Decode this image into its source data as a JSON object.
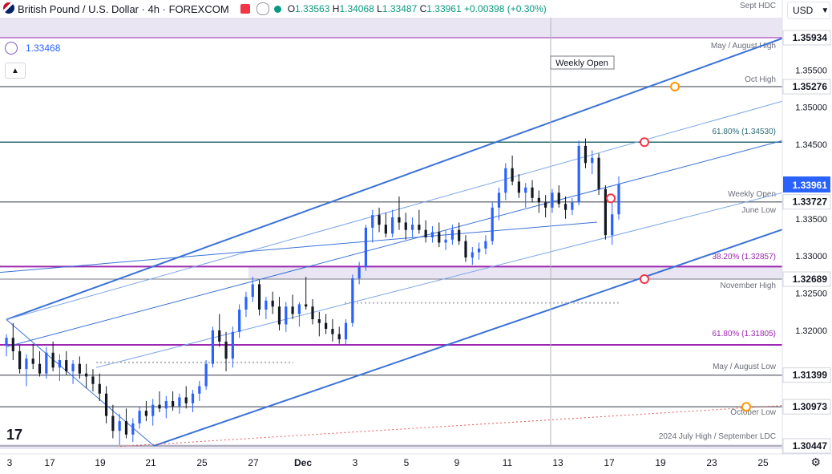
{
  "header": {
    "symbol": "British Pound / U.S. Dollar · 4h · FOREXCOM",
    "open_label": "O",
    "open": "1.33563",
    "high_label": "H",
    "high": "1.34068",
    "low_label": "L",
    "low": "1.33487",
    "close_label": "C",
    "close": "1.33961",
    "change": "+0.00398 (+0.30%)"
  },
  "indicator": {
    "value": "1.33468"
  },
  "currency_selector": {
    "label": "USD"
  },
  "colors": {
    "up": "#2962ff",
    "down": "#131722",
    "channel": "#3a72d6",
    "channel_light": "#7da6e8",
    "magenta": "#9c27b0",
    "gray_line": "#787b86",
    "teal_line": "#2b6c72",
    "marker_red": "#f23645",
    "marker_orange": "#ff9800",
    "band": "#e9e5f2"
  },
  "chart_data": {
    "type": "candlestick",
    "title": "British Pound / U.S. Dollar · 4h · FOREXCOM",
    "y_axis_ticks": [
      "1.35500",
      "1.35000",
      "1.34500",
      "1.33500",
      "1.33000",
      "1.32500",
      "1.32000"
    ],
    "ylim": [
      1.3033,
      1.3615
    ],
    "x_axis_ticks": [
      "3",
      "17",
      "19",
      "21",
      "25",
      "27",
      "Dec",
      "3",
      "5",
      "9",
      "11",
      "13",
      "17",
      "19",
      "23",
      "25"
    ],
    "levels": [
      {
        "label": "Sept HDC",
        "price": 1.3615,
        "price_label": ""
      },
      {
        "label": "May / August High",
        "price": 1.35934,
        "price_label": "1.35934"
      },
      {
        "label": "Oct High",
        "price": 1.35276,
        "price_label": "1.35276"
      },
      {
        "label": "61.80% (1.34530)",
        "price": 1.3453,
        "price_label": ""
      },
      {
        "label": "Weekly Open",
        "price": 1.33727,
        "price_label": "1.33727"
      },
      {
        "label": "June Low",
        "price": 1.33727,
        "price_label": ""
      },
      {
        "label": "38.20% (1.32857)",
        "price": 1.32857,
        "price_label": ""
      },
      {
        "label": "November High",
        "price": 1.32689,
        "price_label": "1.32689"
      },
      {
        "label": "61.80% (1.31805)",
        "price": 1.31805,
        "price_label": ""
      },
      {
        "label": "May / August Low",
        "price": 1.31399,
        "price_label": "1.31399"
      },
      {
        "label": "October Low",
        "price": 1.30973,
        "price_label": "1.30973"
      },
      {
        "label": "2024 July High / September LDC",
        "price": 1.30447,
        "price_label": "1.30447"
      }
    ],
    "last_price": "1.33961",
    "weekly_open_label": "Weekly Open",
    "candles_ohlc": [
      [
        1.318,
        1.3195,
        1.3165,
        1.319
      ],
      [
        1.319,
        1.321,
        1.316,
        1.3172
      ],
      [
        1.3172,
        1.318,
        1.3142,
        1.3148
      ],
      [
        1.3148,
        1.3168,
        1.3125,
        1.3162
      ],
      [
        1.3162,
        1.3182,
        1.3148,
        1.3155
      ],
      [
        1.3155,
        1.3172,
        1.3138,
        1.3142
      ],
      [
        1.3142,
        1.3178,
        1.3135,
        1.317
      ],
      [
        1.317,
        1.3185,
        1.3145,
        1.315
      ],
      [
        1.315,
        1.3168,
        1.3132,
        1.316
      ],
      [
        1.316,
        1.3172,
        1.314,
        1.3145
      ],
      [
        1.3145,
        1.316,
        1.3128,
        1.3155
      ],
      [
        1.3155,
        1.3165,
        1.3135,
        1.3142
      ],
      [
        1.3142,
        1.3155,
        1.3122,
        1.3138
      ],
      [
        1.3138,
        1.3148,
        1.3118,
        1.3128
      ],
      [
        1.3128,
        1.3142,
        1.3105,
        1.3115
      ],
      [
        1.3115,
        1.3125,
        1.3075,
        1.3085
      ],
      [
        1.3085,
        1.31,
        1.3055,
        1.3065
      ],
      [
        1.3065,
        1.3088,
        1.3046,
        1.3078
      ],
      [
        1.3078,
        1.3095,
        1.3055,
        1.306
      ],
      [
        1.306,
        1.3082,
        1.305,
        1.3075
      ],
      [
        1.3075,
        1.3098,
        1.3068,
        1.3092
      ],
      [
        1.3092,
        1.3105,
        1.3078,
        1.3085
      ],
      [
        1.3085,
        1.3108,
        1.3072,
        1.31
      ],
      [
        1.31,
        1.3118,
        1.309,
        1.3095
      ],
      [
        1.3095,
        1.3112,
        1.3082,
        1.3105
      ],
      [
        1.3105,
        1.3118,
        1.3092,
        1.3098
      ],
      [
        1.3098,
        1.3115,
        1.3088,
        1.311
      ],
      [
        1.311,
        1.3125,
        1.3095,
        1.3102
      ],
      [
        1.3102,
        1.312,
        1.309,
        1.3115
      ],
      [
        1.3115,
        1.3132,
        1.3105,
        1.3125
      ],
      [
        1.3125,
        1.316,
        1.312,
        1.3155
      ],
      [
        1.3155,
        1.3205,
        1.315,
        1.32
      ],
      [
        1.32,
        1.3222,
        1.3178,
        1.3185
      ],
      [
        1.3185,
        1.3198,
        1.3145,
        1.3162
      ],
      [
        1.3162,
        1.3205,
        1.315,
        1.3198
      ],
      [
        1.3198,
        1.3235,
        1.319,
        1.3228
      ],
      [
        1.3228,
        1.3252,
        1.3218,
        1.3245
      ],
      [
        1.3245,
        1.3272,
        1.3238,
        1.3262
      ],
      [
        1.3262,
        1.3268,
        1.322,
        1.3228
      ],
      [
        1.3228,
        1.3245,
        1.3215,
        1.324
      ],
      [
        1.324,
        1.3252,
        1.3222,
        1.3232
      ],
      [
        1.3232,
        1.3245,
        1.32,
        1.3208
      ],
      [
        1.3208,
        1.3238,
        1.3198,
        1.3232
      ],
      [
        1.3232,
        1.3248,
        1.3215,
        1.3222
      ],
      [
        1.3222,
        1.3238,
        1.3205,
        1.3235
      ],
      [
        1.3235,
        1.3272,
        1.3228,
        1.3232
      ],
      [
        1.3232,
        1.3242,
        1.3208,
        1.3215
      ],
      [
        1.3215,
        1.3225,
        1.3192,
        1.321
      ],
      [
        1.321,
        1.3222,
        1.3195,
        1.3202
      ],
      [
        1.3202,
        1.3215,
        1.3185,
        1.3195
      ],
      [
        1.3195,
        1.3205,
        1.3182,
        1.3188
      ],
      [
        1.3188,
        1.3215,
        1.318,
        1.321
      ],
      [
        1.321,
        1.3275,
        1.3205,
        1.327
      ],
      [
        1.327,
        1.3292,
        1.3262,
        1.3285
      ],
      [
        1.3285,
        1.3342,
        1.328,
        1.3338
      ],
      [
        1.3338,
        1.3362,
        1.3318,
        1.3355
      ],
      [
        1.3355,
        1.3365,
        1.3332,
        1.3342
      ],
      [
        1.3342,
        1.3358,
        1.3325,
        1.333
      ],
      [
        1.333,
        1.3362,
        1.3325,
        1.3352
      ],
      [
        1.3352,
        1.338,
        1.3335,
        1.3345
      ],
      [
        1.3345,
        1.3358,
        1.3322,
        1.3335
      ],
      [
        1.3335,
        1.3352,
        1.3325,
        1.3342
      ],
      [
        1.3342,
        1.3362,
        1.333,
        1.3335
      ],
      [
        1.3335,
        1.3348,
        1.3318,
        1.3325
      ],
      [
        1.3325,
        1.334,
        1.3318,
        1.3332
      ],
      [
        1.3332,
        1.3345,
        1.3312,
        1.3318
      ],
      [
        1.3318,
        1.3335,
        1.3308,
        1.3322
      ],
      [
        1.3322,
        1.3342,
        1.3315,
        1.3335
      ],
      [
        1.3335,
        1.3345,
        1.3315,
        1.332
      ],
      [
        1.332,
        1.3328,
        1.3292,
        1.3298
      ],
      [
        1.3298,
        1.3312,
        1.3288,
        1.3305
      ],
      [
        1.3305,
        1.3318,
        1.3295,
        1.331
      ],
      [
        1.331,
        1.3328,
        1.3302,
        1.332
      ],
      [
        1.332,
        1.3372,
        1.3315,
        1.3365
      ],
      [
        1.3365,
        1.3392,
        1.3348,
        1.3385
      ],
      [
        1.3385,
        1.3425,
        1.3375,
        1.3418
      ],
      [
        1.3418,
        1.3435,
        1.3395,
        1.34
      ],
      [
        1.34,
        1.341,
        1.3378,
        1.3385
      ],
      [
        1.3385,
        1.3398,
        1.3365,
        1.3392
      ],
      [
        1.3392,
        1.3402,
        1.3372,
        1.3378
      ],
      [
        1.3378,
        1.3388,
        1.3358,
        1.3372
      ],
      [
        1.3372,
        1.3382,
        1.3352,
        1.3365
      ],
      [
        1.3365,
        1.339,
        1.3358,
        1.3385
      ],
      [
        1.3385,
        1.3395,
        1.3365,
        1.337
      ],
      [
        1.337,
        1.338,
        1.335,
        1.3362
      ],
      [
        1.3362,
        1.3378,
        1.3355,
        1.3372
      ],
      [
        1.3372,
        1.3455,
        1.3368,
        1.3448
      ],
      [
        1.3448,
        1.3458,
        1.3418,
        1.3425
      ],
      [
        1.3425,
        1.3442,
        1.341,
        1.3432
      ],
      [
        1.3432,
        1.3438,
        1.3382,
        1.339
      ],
      [
        1.339,
        1.3395,
        1.3322,
        1.3328
      ],
      [
        1.3328,
        1.3372,
        1.3315,
        1.3356
      ],
      [
        1.3356,
        1.3407,
        1.3349,
        1.3396
      ]
    ]
  }
}
